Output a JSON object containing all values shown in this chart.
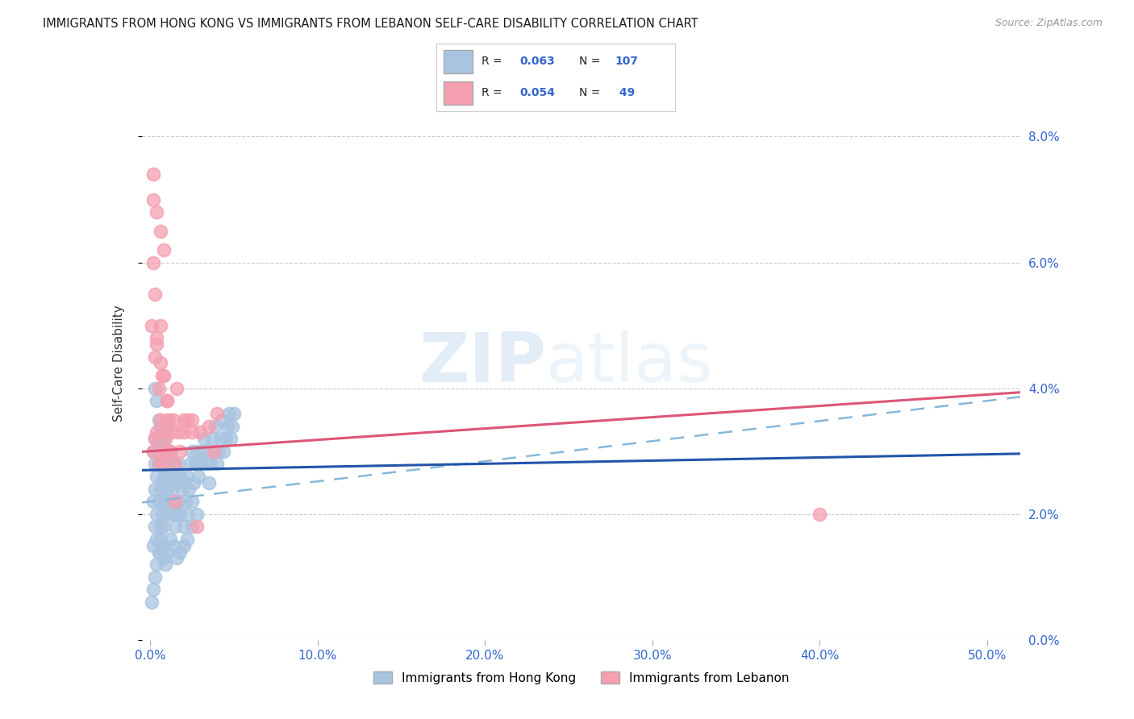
{
  "title": "IMMIGRANTS FROM HONG KONG VS IMMIGRANTS FROM LEBANON SELF-CARE DISABILITY CORRELATION CHART",
  "source": "Source: ZipAtlas.com",
  "ylabel": "Self-Care Disability",
  "xlabel_ticks": [
    "0.0%",
    "10.0%",
    "20.0%",
    "30.0%",
    "40.0%",
    "50.0%"
  ],
  "xlabel_vals": [
    0.0,
    0.1,
    0.2,
    0.3,
    0.4,
    0.5
  ],
  "ylabel_ticks": [
    "0.0%",
    "2.0%",
    "4.0%",
    "6.0%",
    "8.0%"
  ],
  "ylabel_vals": [
    0.0,
    0.02,
    0.04,
    0.06,
    0.08
  ],
  "ylim": [
    0.0,
    0.088
  ],
  "xlim": [
    -0.005,
    0.52
  ],
  "hk_color": "#a8c4e0",
  "lb_color": "#f4a0b0",
  "hk_line_color": "#2255aa",
  "lb_line_color": "#dd5577",
  "hk_dash_color": "#88b8d8",
  "R_hk": 0.063,
  "N_hk": 107,
  "R_lb": 0.054,
  "N_lb": 49,
  "legend_label_hk": "Immigrants from Hong Kong",
  "legend_label_lb": "Immigrants from Lebanon",
  "watermark_zip": "ZIP",
  "watermark_atlas": "atlas",
  "hk_x": [
    0.001,
    0.002,
    0.002,
    0.002,
    0.003,
    0.003,
    0.003,
    0.003,
    0.004,
    0.004,
    0.004,
    0.004,
    0.005,
    0.005,
    0.005,
    0.005,
    0.006,
    0.006,
    0.006,
    0.006,
    0.007,
    0.007,
    0.007,
    0.008,
    0.008,
    0.008,
    0.008,
    0.009,
    0.009,
    0.009,
    0.01,
    0.01,
    0.01,
    0.01,
    0.011,
    0.011,
    0.012,
    0.012,
    0.012,
    0.013,
    0.013,
    0.014,
    0.014,
    0.015,
    0.015,
    0.015,
    0.016,
    0.016,
    0.017,
    0.017,
    0.018,
    0.018,
    0.019,
    0.02,
    0.02,
    0.021,
    0.022,
    0.022,
    0.023,
    0.024,
    0.025,
    0.025,
    0.026,
    0.027,
    0.028,
    0.029,
    0.03,
    0.031,
    0.032,
    0.033,
    0.034,
    0.035,
    0.036,
    0.037,
    0.038,
    0.039,
    0.04,
    0.041,
    0.042,
    0.043,
    0.044,
    0.045,
    0.046,
    0.047,
    0.048,
    0.049,
    0.05,
    0.002,
    0.003,
    0.004,
    0.005,
    0.006,
    0.007,
    0.008,
    0.009,
    0.01,
    0.012,
    0.014,
    0.016,
    0.018,
    0.02,
    0.022,
    0.025,
    0.028,
    0.003,
    0.004,
    0.005,
    0.006
  ],
  "hk_y": [
    0.006,
    0.008,
    0.022,
    0.03,
    0.01,
    0.024,
    0.028,
    0.032,
    0.012,
    0.02,
    0.026,
    0.03,
    0.014,
    0.022,
    0.028,
    0.032,
    0.018,
    0.024,
    0.028,
    0.033,
    0.02,
    0.025,
    0.03,
    0.018,
    0.022,
    0.026,
    0.032,
    0.022,
    0.026,
    0.03,
    0.02,
    0.024,
    0.028,
    0.033,
    0.025,
    0.03,
    0.022,
    0.026,
    0.03,
    0.024,
    0.028,
    0.02,
    0.025,
    0.018,
    0.022,
    0.028,
    0.02,
    0.026,
    0.022,
    0.028,
    0.02,
    0.026,
    0.024,
    0.018,
    0.025,
    0.022,
    0.02,
    0.026,
    0.024,
    0.028,
    0.022,
    0.03,
    0.025,
    0.028,
    0.03,
    0.026,
    0.028,
    0.03,
    0.032,
    0.028,
    0.03,
    0.025,
    0.028,
    0.032,
    0.03,
    0.034,
    0.028,
    0.03,
    0.032,
    0.035,
    0.03,
    0.032,
    0.034,
    0.036,
    0.032,
    0.034,
    0.036,
    0.015,
    0.018,
    0.016,
    0.014,
    0.016,
    0.015,
    0.013,
    0.012,
    0.014,
    0.016,
    0.015,
    0.013,
    0.014,
    0.015,
    0.016,
    0.018,
    0.02,
    0.04,
    0.038,
    0.035,
    0.034
  ],
  "lb_x": [
    0.001,
    0.002,
    0.002,
    0.003,
    0.003,
    0.004,
    0.004,
    0.005,
    0.005,
    0.006,
    0.006,
    0.007,
    0.007,
    0.008,
    0.008,
    0.009,
    0.01,
    0.01,
    0.011,
    0.012,
    0.013,
    0.014,
    0.015,
    0.016,
    0.017,
    0.018,
    0.02,
    0.022,
    0.025,
    0.028,
    0.03,
    0.035,
    0.038,
    0.04,
    0.002,
    0.003,
    0.004,
    0.006,
    0.008,
    0.01,
    0.015,
    0.02,
    0.025,
    0.002,
    0.004,
    0.006,
    0.008,
    0.01,
    0.4
  ],
  "lb_y": [
    0.05,
    0.074,
    0.03,
    0.032,
    0.045,
    0.033,
    0.048,
    0.028,
    0.04,
    0.035,
    0.05,
    0.03,
    0.042,
    0.033,
    0.028,
    0.032,
    0.03,
    0.038,
    0.035,
    0.03,
    0.033,
    0.035,
    0.028,
    0.04,
    0.033,
    0.03,
    0.033,
    0.035,
    0.033,
    0.018,
    0.033,
    0.034,
    0.03,
    0.036,
    0.06,
    0.055,
    0.047,
    0.044,
    0.042,
    0.035,
    0.022,
    0.035,
    0.035,
    0.07,
    0.068,
    0.065,
    0.062,
    0.038,
    0.02
  ]
}
